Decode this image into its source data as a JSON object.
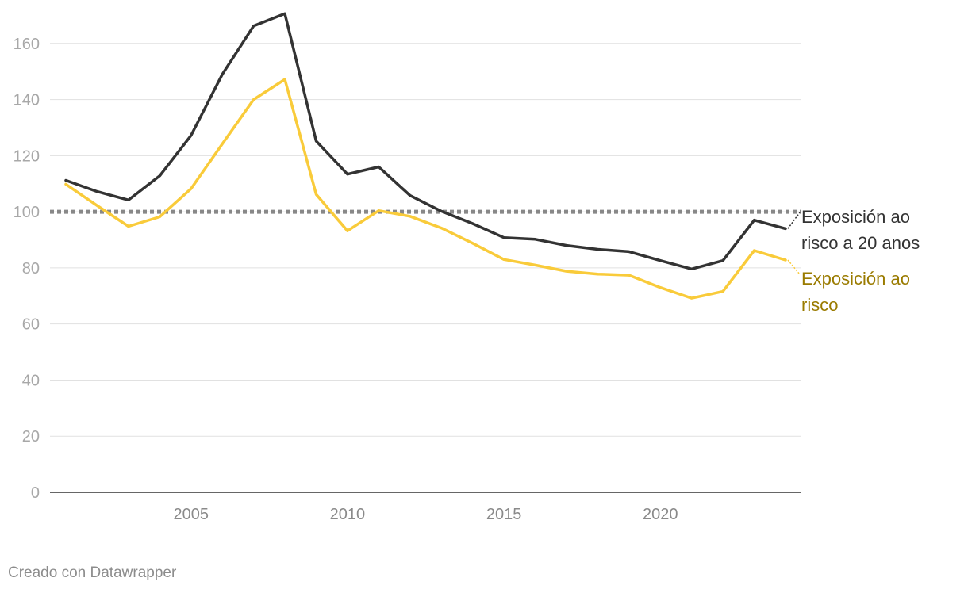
{
  "chart_data": {
    "type": "line",
    "y_ticks": [
      0,
      20,
      40,
      60,
      80,
      100,
      120,
      140,
      160
    ],
    "x_ticks": [
      2005,
      2010,
      2015,
      2020
    ],
    "ylim": [
      0,
      170
    ],
    "xlim": [
      2000.5,
      2024.5
    ],
    "grid": true,
    "reference_line": {
      "y": 100,
      "style": "dotted",
      "color": "#888888"
    },
    "x": [
      2001,
      2002,
      2003,
      2004,
      2005,
      2006,
      2007,
      2008,
      2009,
      2010,
      2011,
      2012,
      2013,
      2014,
      2015,
      2016,
      2017,
      2018,
      2019,
      2020,
      2021,
      2022,
      2023,
      2024
    ],
    "series": [
      {
        "name_lines": [
          "Exposición ao",
          "risco a 20 anos"
        ],
        "color": "#333333",
        "label_color": "#333333",
        "values": [
          111.2,
          107.2,
          104.2,
          112.8,
          127.2,
          149.0,
          166.2,
          170.6,
          125.2,
          113.4,
          116.0,
          105.8,
          100.2,
          95.8,
          90.8,
          90.2,
          88.0,
          86.6,
          85.8,
          82.6,
          79.6,
          82.6,
          97.0,
          94.0
        ]
      },
      {
        "name_lines": [
          "Exposición ao",
          "risco"
        ],
        "color": "#f9cb3a",
        "label_color": "#9a7b00",
        "values": [
          109.8,
          102.2,
          94.8,
          98.2,
          108.2,
          124.2,
          140.0,
          147.2,
          106.2,
          93.2,
          100.4,
          98.4,
          94.2,
          88.8,
          83.0,
          81.0,
          78.8,
          77.8,
          77.4,
          73.0,
          69.2,
          71.6,
          86.2,
          82.8
        ]
      }
    ]
  },
  "credit": "Creado con Datawrapper"
}
